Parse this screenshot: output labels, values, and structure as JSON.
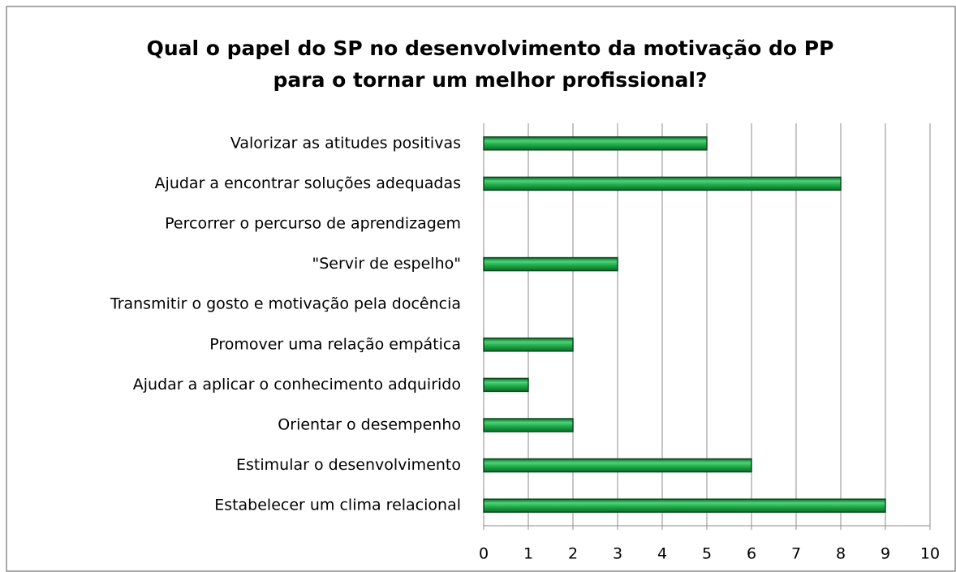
{
  "chart_data": {
    "type": "bar",
    "orientation": "horizontal",
    "title": [
      "Qual o papel do SP no desenvolvimento da motivação do PP",
      "para o tornar um melhor profissional?"
    ],
    "categories": [
      "Valorizar as atitudes positivas",
      "Ajudar a encontrar soluções adequadas",
      "Percorrer o percurso de aprendizagem",
      "\"Servir de espelho\"",
      "Transmitir o gosto e motivação pela docência",
      "Promover uma relação empática",
      "Ajudar a aplicar o conhecimento adquirido",
      "Orientar o desempenho",
      "Estimular o desenvolvimento",
      "Estabelecer um clima relacional"
    ],
    "values": [
      5,
      8,
      0,
      3,
      0,
      2,
      1,
      2,
      6,
      9
    ],
    "color": "#1fae4a",
    "xlim": [
      0,
      10
    ],
    "xticks": [
      0,
      1,
      2,
      3,
      4,
      5,
      6,
      7,
      8,
      9,
      10
    ],
    "grid": true
  }
}
